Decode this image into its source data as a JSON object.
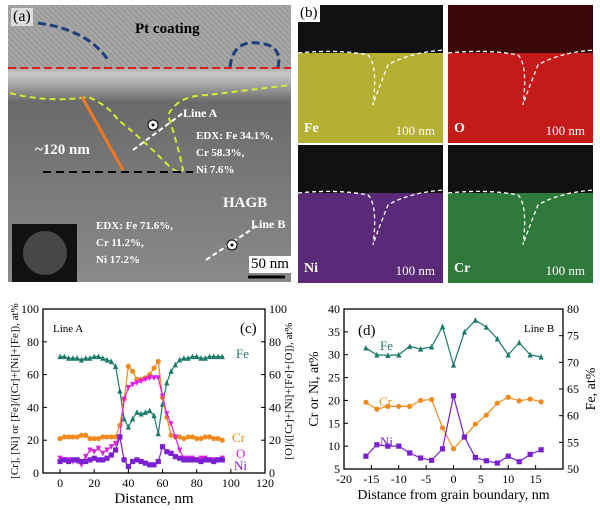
{
  "panel_a": {
    "label": "(a)",
    "coating": "Pt coating",
    "thickness": "~120 nm",
    "line_a": "Line A",
    "line_b": "Line B",
    "hagb": "HAGB",
    "edx_a": [
      "EDX:  Fe 34.1%,",
      "Cr 58.3%,",
      "Ni 7.6%"
    ],
    "edx_b": [
      "EDX:  Fe 71.6%,",
      "Cr 11.2%,",
      "Ni 17.2%"
    ],
    "scale": "50 nm"
  },
  "panel_b": {
    "label": "(b)",
    "maps": [
      {
        "element": "Fe",
        "scale": "100 nm",
        "color": "#b5b032"
      },
      {
        "element": "O",
        "scale": "100 nm",
        "color": "#c41a1a"
      },
      {
        "element": "Ni",
        "scale": "100 nm",
        "color": "#5a2a78"
      },
      {
        "element": "Cr",
        "scale": "100 nm",
        "color": "#2f7a3a"
      }
    ]
  },
  "chart_data": [
    {
      "type": "line",
      "panel": "(c)",
      "annotation": "Line A",
      "xlabel": "Distance, nm",
      "ylabel": "[Cr], [Ni] or [Fe]/([Cr]+[Ni]+[Fe]), at%",
      "ylabel_right": "[O]/([Cr]+[Ni]+[Fe]+[O]), at%",
      "xlim": [
        -10,
        120
      ],
      "ylim": [
        0,
        100
      ],
      "xticks": [
        0,
        20,
        40,
        60,
        80,
        100,
        120
      ],
      "yticks": [
        0,
        20,
        40,
        60,
        80,
        100
      ],
      "x": [
        0,
        2.5,
        5,
        7.5,
        10,
        12.5,
        15,
        17.5,
        20,
        22.5,
        25,
        27.5,
        30,
        32.5,
        35,
        37.5,
        40,
        42.5,
        45,
        47.5,
        50,
        52.5,
        55,
        57.5,
        60,
        62.5,
        65,
        67.5,
        70,
        72.5,
        75,
        77.5,
        80,
        82.5,
        85,
        87.5,
        90,
        92.5,
        95
      ],
      "series": [
        {
          "name": "Fe",
          "color": "#1a7a6a",
          "marker": "triangle",
          "values": [
            71,
            71,
            70,
            70,
            70,
            69,
            70,
            70,
            71,
            71,
            70,
            69,
            68,
            65,
            50,
            33,
            28,
            33,
            37,
            36,
            37,
            38,
            35,
            24,
            42,
            55,
            62,
            66,
            69,
            70,
            70,
            71,
            71,
            70,
            70,
            71,
            71,
            71,
            71
          ]
        },
        {
          "name": "Cr",
          "color": "#f08a1c",
          "marker": "circle",
          "values": [
            21,
            22,
            22,
            22,
            22,
            23,
            23,
            21,
            21,
            21,
            22,
            22,
            22,
            22,
            29,
            45,
            65,
            62,
            57,
            57,
            58,
            60,
            64,
            68,
            46,
            34,
            23,
            22,
            22,
            21,
            22,
            22,
            21,
            21,
            22,
            22,
            21,
            21,
            20
          ]
        },
        {
          "name": "O",
          "color": "#e020e0",
          "marker": "triangle-down",
          "values": [
            9,
            8,
            8,
            7,
            7,
            5,
            10,
            14,
            13,
            15,
            12,
            14,
            16,
            18,
            22,
            45,
            52,
            54,
            55,
            56,
            57,
            58,
            58,
            58,
            47,
            36,
            30,
            22,
            14,
            9,
            9,
            9,
            8,
            9,
            9,
            8,
            8,
            8,
            9
          ]
        },
        {
          "name": "Ni",
          "color": "#7a20d0",
          "marker": "square",
          "values": [
            7,
            8,
            7,
            8,
            8,
            7,
            7,
            8,
            9,
            8,
            8,
            9,
            11,
            14,
            22,
            8,
            4,
            7,
            8,
            7,
            6,
            5,
            5,
            7,
            16,
            13,
            12,
            10,
            9,
            8,
            8,
            8,
            8,
            7,
            8,
            8,
            7,
            8,
            8
          ]
        }
      ]
    },
    {
      "type": "line",
      "panel": "(d)",
      "annotation": "Line B",
      "xlabel": "Distance from grain boundary, nm",
      "ylabel": "Cr or Ni, at%",
      "ylabel_right": "Fe, at%",
      "xlim": [
        -20,
        20
      ],
      "ylim": [
        5,
        40
      ],
      "ylim_right": [
        50,
        80
      ],
      "xticks": [
        -20,
        -15,
        -10,
        -5,
        0,
        5,
        10,
        15
      ],
      "yticks": [
        5,
        10,
        15,
        20,
        25,
        30,
        35,
        40
      ],
      "yticks_right": [
        50,
        55,
        60,
        65,
        70,
        75,
        80
      ],
      "x": [
        -16,
        -14,
        -12,
        -10,
        -8,
        -6,
        -4,
        -2,
        0,
        2,
        4,
        6,
        8,
        10,
        12,
        14,
        16
      ],
      "series": [
        {
          "name": "Fe",
          "axis": "right",
          "color": "#1a7a6a",
          "marker": "triangle",
          "values": [
            72.7,
            71.4,
            71.3,
            71.4,
            73,
            72.5,
            72.9,
            76.7,
            69.5,
            75.7,
            77.9,
            76.6,
            74.4,
            71.4,
            73.7,
            71.4,
            71
          ]
        },
        {
          "name": "Cr",
          "axis": "left",
          "color": "#f08a1c",
          "marker": "circle",
          "values": [
            19.6,
            18.1,
            18.7,
            18.7,
            18.7,
            20,
            20.2,
            14,
            9.4,
            12,
            14.8,
            16.8,
            19.4,
            20.7,
            19.9,
            20.3,
            19.7
          ]
        },
        {
          "name": "Ni",
          "axis": "left",
          "color": "#7a20d0",
          "marker": "square",
          "values": [
            7.8,
            10.3,
            10,
            10,
            8.5,
            7.4,
            6.9,
            9.4,
            21,
            12,
            7.5,
            6.8,
            6.3,
            7.8,
            6.6,
            8.2,
            9.2
          ]
        }
      ]
    }
  ]
}
